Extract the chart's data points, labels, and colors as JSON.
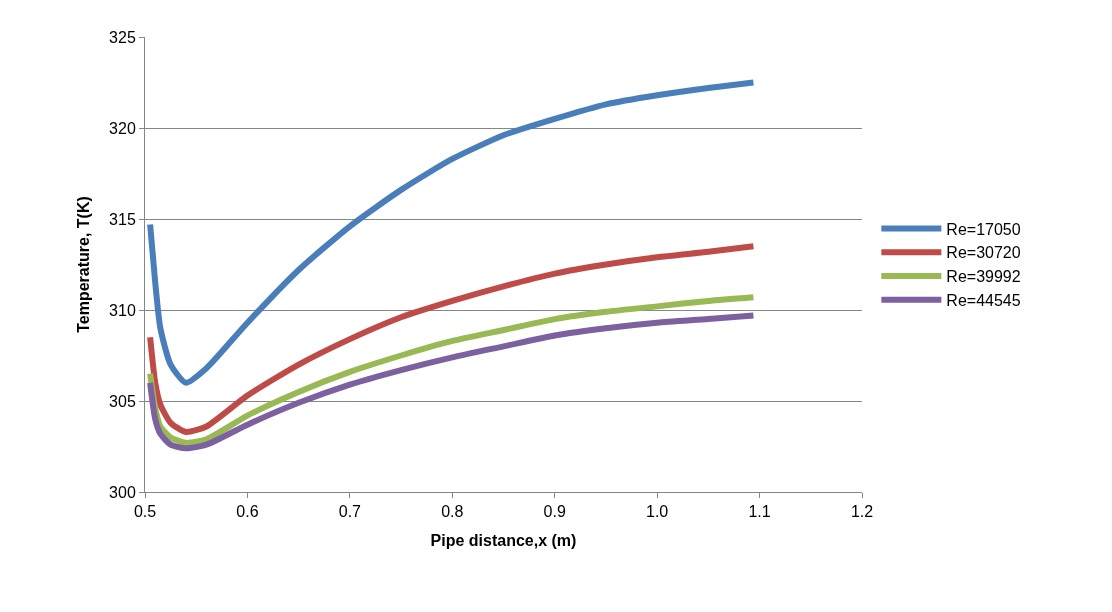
{
  "chart_data": {
    "type": "line",
    "xlabel": "Pipe distance,x (m)",
    "ylabel": "Temperature, T(K)",
    "xlim": [
      0.5,
      1.2
    ],
    "xticks": [
      0.5,
      0.6,
      0.7,
      0.8,
      0.9,
      {
        "value": 1.0,
        "label": "1.0"
      },
      1.1,
      1.2
    ],
    "ylim": [
      300,
      325
    ],
    "yticks": [
      300,
      305,
      310,
      315,
      320,
      325
    ],
    "grid": "y",
    "legend": "right",
    "marker": "none",
    "line_style": "solid",
    "series": [
      {
        "name": "Re=17050",
        "color": "#4a7ebb",
        "x": [
          0.505,
          0.51,
          0.515,
          0.525,
          0.54,
          0.56,
          0.6,
          0.65,
          0.7,
          0.75,
          0.8,
          0.85,
          0.9,
          0.95,
          1.0,
          1.05,
          1.094
        ],
        "values": [
          314.7,
          311.5,
          309,
          307,
          306,
          306.8,
          309.3,
          312.2,
          314.6,
          316.6,
          318.3,
          319.6,
          320.5,
          321.3,
          321.8,
          322.2,
          322.5
        ]
      },
      {
        "name": "Re=30720",
        "color": "#be4b48",
        "x": [
          0.505,
          0.51,
          0.515,
          0.525,
          0.54,
          0.56,
          0.6,
          0.65,
          0.7,
          0.75,
          0.8,
          0.85,
          0.9,
          0.95,
          1.0,
          1.05,
          1.094
        ],
        "values": [
          308.5,
          306,
          304.8,
          303.8,
          303.3,
          303.6,
          305.3,
          307,
          308.4,
          309.6,
          310.5,
          311.3,
          312,
          312.5,
          312.9,
          313.2,
          313.5
        ]
      },
      {
        "name": "Re=39992",
        "color": "#98b954",
        "x": [
          0.505,
          0.51,
          0.515,
          0.525,
          0.54,
          0.56,
          0.6,
          0.65,
          0.7,
          0.75,
          0.8,
          0.85,
          0.9,
          0.95,
          1.0,
          1.05,
          1.094
        ],
        "values": [
          306.5,
          304.6,
          303.6,
          303,
          302.7,
          302.9,
          304.2,
          305.5,
          306.6,
          307.5,
          308.3,
          308.9,
          309.5,
          309.9,
          310.2,
          310.5,
          310.7
        ]
      },
      {
        "name": "Re=44545",
        "color": "#7d60a0",
        "x": [
          0.505,
          0.51,
          0.515,
          0.525,
          0.54,
          0.56,
          0.6,
          0.65,
          0.7,
          0.75,
          0.8,
          0.85,
          0.9,
          0.95,
          1.0,
          1.05,
          1.094
        ],
        "values": [
          306,
          304,
          303.2,
          302.6,
          302.4,
          302.6,
          303.7,
          304.9,
          305.9,
          306.7,
          307.4,
          308,
          308.6,
          309,
          309.3,
          309.5,
          309.7
        ]
      }
    ]
  }
}
